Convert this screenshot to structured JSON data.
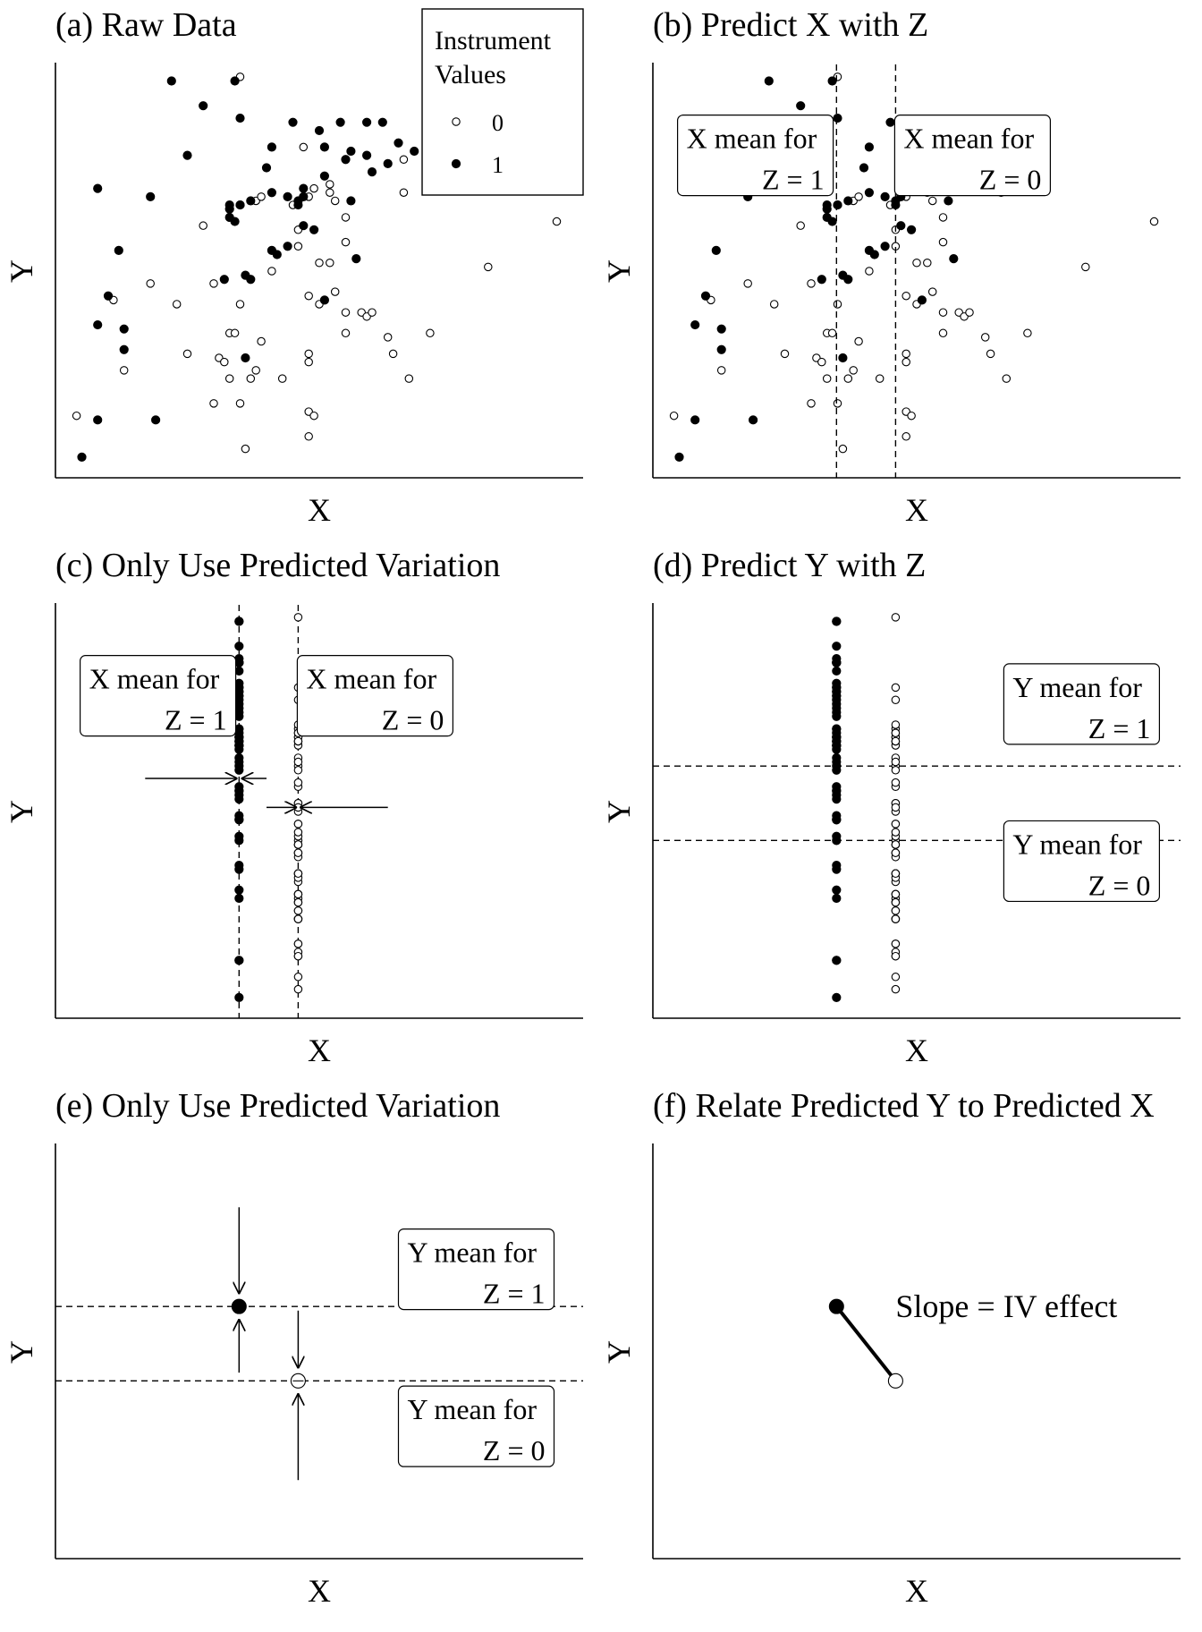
{
  "chart_data": [
    {
      "id": "a",
      "type": "scatter",
      "title": "(a) Raw Data",
      "xlabel": "X",
      "ylabel": "Y",
      "xlim": [
        0,
        100
      ],
      "ylim": [
        0,
        100
      ],
      "legend": {
        "title_lines": [
          "Instrument",
          "Values"
        ],
        "placement": "top-right",
        "entries": [
          {
            "label": "0",
            "marker": "open-circle"
          },
          {
            "label": "1",
            "marker": "filled-circle"
          }
        ]
      },
      "series": [
        {
          "name": "0",
          "marker": "open",
          "points": [
            [
              4,
              15
            ],
            [
              11,
              43
            ],
            [
              13,
              26
            ],
            [
              18,
              47
            ],
            [
              23,
              42
            ],
            [
              25,
              30
            ],
            [
              28,
              61
            ],
            [
              30,
              47
            ],
            [
              30,
              18
            ],
            [
              31,
              29
            ],
            [
              32,
              28
            ],
            [
              33,
              35
            ],
            [
              33,
              24
            ],
            [
              34,
              35
            ],
            [
              35,
              42
            ],
            [
              35,
              18
            ],
            [
              36,
              7
            ],
            [
              37,
              24
            ],
            [
              38,
              67
            ],
            [
              39,
              33
            ],
            [
              39,
              68
            ],
            [
              41,
              50
            ],
            [
              38,
              26
            ],
            [
              43,
              24
            ],
            [
              45,
              66
            ],
            [
              46,
              67
            ],
            [
              47,
              80
            ],
            [
              46,
              56
            ],
            [
              46,
              60
            ],
            [
              48,
              44
            ],
            [
              48,
              68
            ],
            [
              48,
              16
            ],
            [
              49,
              70
            ],
            [
              49,
              15
            ],
            [
              48,
              10
            ],
            [
              48,
              28
            ],
            [
              48,
              30
            ],
            [
              50,
              52
            ],
            [
              50,
              42
            ],
            [
              53,
              67
            ],
            [
              52,
              69
            ],
            [
              52,
              71
            ],
            [
              52,
              52
            ],
            [
              53,
              45
            ],
            [
              55,
              40
            ],
            [
              55,
              57
            ],
            [
              55,
              35
            ],
            [
              55,
              63
            ],
            [
              58,
              40
            ],
            [
              59,
              39
            ],
            [
              60,
              40
            ],
            [
              63,
              34
            ],
            [
              64,
              30
            ],
            [
              66,
              77
            ],
            [
              66,
              69
            ],
            [
              67,
              24
            ],
            [
              71,
              35
            ],
            [
              82,
              51
            ],
            [
              95,
              62
            ],
            [
              35,
              97
            ]
          ]
        },
        {
          "name": "1",
          "marker": "filled",
          "points": [
            [
              5,
              5
            ],
            [
              8,
              70
            ],
            [
              8,
              14
            ],
            [
              8,
              37
            ],
            [
              10,
              44
            ],
            [
              12,
              55
            ],
            [
              13,
              36
            ],
            [
              13,
              31
            ],
            [
              18,
              68
            ],
            [
              19,
              14
            ],
            [
              22,
              96
            ],
            [
              25,
              78
            ],
            [
              28,
              90
            ],
            [
              32,
              48
            ],
            [
              33,
              65
            ],
            [
              33,
              63
            ],
            [
              33,
              66
            ],
            [
              34,
              62
            ],
            [
              35,
              66
            ],
            [
              35,
              66
            ],
            [
              34,
              96
            ],
            [
              35,
              87
            ],
            [
              36,
              49
            ],
            [
              36,
              29
            ],
            [
              37,
              48
            ],
            [
              37,
              67
            ],
            [
              40,
              75
            ],
            [
              41,
              55
            ],
            [
              41,
              80
            ],
            [
              41,
              69
            ],
            [
              42,
              54
            ],
            [
              44,
              56
            ],
            [
              44,
              68
            ],
            [
              45,
              86
            ],
            [
              46,
              66
            ],
            [
              46,
              67
            ],
            [
              47,
              61
            ],
            [
              47,
              68
            ],
            [
              47,
              70
            ],
            [
              49,
              60
            ],
            [
              50,
              84
            ],
            [
              51,
              43
            ],
            [
              51,
              80
            ],
            [
              51,
              73
            ],
            [
              54,
              86
            ],
            [
              55,
              77
            ],
            [
              56,
              79
            ],
            [
              56,
              67
            ],
            [
              57,
              53
            ],
            [
              59,
              78
            ],
            [
              60,
              74
            ],
            [
              59,
              86
            ],
            [
              62,
              86
            ],
            [
              63,
              76
            ],
            [
              65,
              81
            ],
            [
              68,
              79
            ]
          ]
        }
      ]
    },
    {
      "id": "b",
      "type": "scatter",
      "title": "(b) Predict X with Z",
      "xlabel": "X",
      "ylabel": "Y",
      "xlim": [
        0,
        100
      ],
      "ylim": [
        0,
        100
      ],
      "vlines": [
        34.8,
        46.0
      ],
      "annotations": [
        {
          "lines": [
            "X mean for",
            "Z = 1"
          ],
          "at": [
            34,
            78
          ]
        },
        {
          "lines": [
            "X mean for",
            "Z = 0"
          ],
          "at": [
            46,
            78
          ]
        }
      ]
    },
    {
      "id": "c",
      "type": "scatter",
      "title": "(c) Only Use Predicted Variation",
      "xlabel": "X",
      "ylabel": "Y",
      "xlim": [
        0,
        100
      ],
      "ylim": [
        0,
        100
      ],
      "vlines": [
        34.8,
        46.0
      ],
      "arrows": [
        {
          "from": [
            17,
            58
          ],
          "to": [
            34.5,
            58
          ]
        },
        {
          "from": [
            40,
            58
          ],
          "to": [
            35.2,
            58
          ]
        },
        {
          "from": [
            40,
            51
          ],
          "to": [
            45.8,
            51
          ]
        },
        {
          "from": [
            63,
            51
          ],
          "to": [
            46.3,
            51
          ]
        }
      ],
      "annotations": [
        {
          "lines": [
            "X mean for",
            "Z = 1"
          ],
          "at": [
            34,
            78
          ]
        },
        {
          "lines": [
            "X mean for",
            "Z = 0"
          ],
          "at": [
            46,
            78
          ]
        }
      ]
    },
    {
      "id": "d",
      "type": "scatter",
      "title": "(d) Predict Y with Z",
      "xlabel": "X",
      "ylabel": "Y",
      "xlim": [
        0,
        100
      ],
      "ylim": [
        0,
        100
      ],
      "hlines": [
        61,
        43
      ],
      "annotations": [
        {
          "lines": [
            "Y mean for",
            "Z = 1"
          ],
          "at": [
            96,
            76
          ]
        },
        {
          "lines": [
            "Y mean for",
            "Z = 0"
          ],
          "at": [
            96,
            38
          ]
        }
      ]
    },
    {
      "id": "e",
      "type": "scatter",
      "title": "(e) Only Use Predicted Variation",
      "xlabel": "X",
      "ylabel": "Y",
      "xlim": [
        0,
        100
      ],
      "ylim": [
        0,
        100
      ],
      "hlines": [
        61,
        43
      ],
      "points": [
        {
          "x": 34.8,
          "y": 61,
          "marker": "filled"
        },
        {
          "x": 46.0,
          "y": 43,
          "marker": "open"
        }
      ],
      "arrows": [
        {
          "from": [
            34.8,
            85
          ],
          "to": [
            34.8,
            64
          ]
        },
        {
          "from": [
            34.8,
            45
          ],
          "to": [
            34.8,
            58
          ]
        },
        {
          "from": [
            46.0,
            60
          ],
          "to": [
            46.0,
            46
          ]
        },
        {
          "from": [
            46.0,
            19
          ],
          "to": [
            46.0,
            40
          ]
        }
      ],
      "annotations": [
        {
          "lines": [
            "Y mean for",
            "Z = 1"
          ],
          "at": [
            65,
            70
          ]
        },
        {
          "lines": [
            "Y mean for",
            "Z = 0"
          ],
          "at": [
            65,
            32
          ]
        }
      ]
    },
    {
      "id": "f",
      "type": "line",
      "title": "(f) Relate Predicted Y to Predicted X",
      "xlabel": "X",
      "ylabel": "Y",
      "xlim": [
        0,
        100
      ],
      "ylim": [
        0,
        100
      ],
      "points": [
        {
          "x": 34.8,
          "y": 61,
          "marker": "filled"
        },
        {
          "x": 46.0,
          "y": 43,
          "marker": "open"
        }
      ],
      "annotations": [
        {
          "lines": [
            "Slope = IV effect"
          ],
          "at": [
            46,
            61
          ]
        }
      ]
    }
  ]
}
